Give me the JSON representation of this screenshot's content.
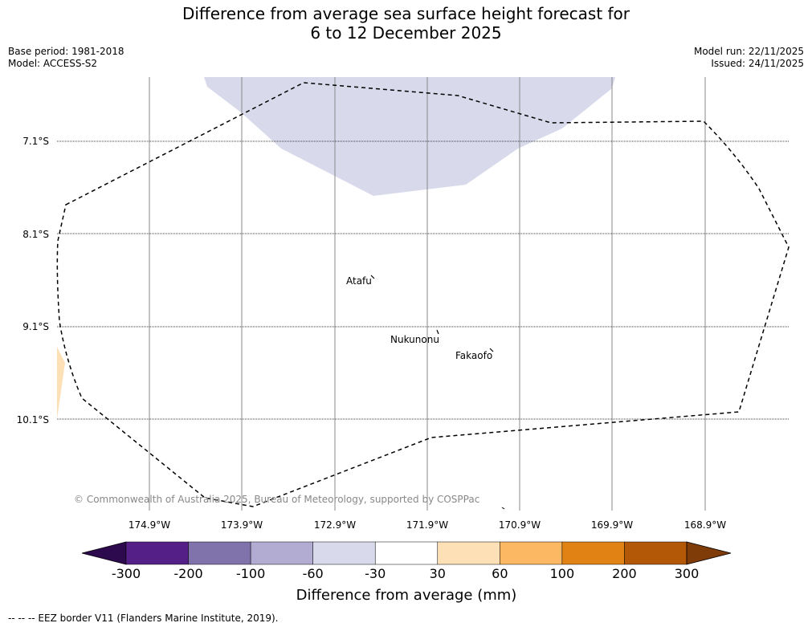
{
  "title": {
    "line1": "Difference from average sea surface height forecast for",
    "line2": "6 to 12 December 2025"
  },
  "meta_left": {
    "base_period": "Base period: 1981-2018",
    "model": "Model: ACCESS-S2"
  },
  "meta_right": {
    "model_run": "Model run: 22/11/2025",
    "issued": "Issued: 24/11/2025"
  },
  "map": {
    "lat_labels": [
      "7.1°S",
      "8.1°S",
      "9.1°S",
      "10.1°S"
    ],
    "lon_labels": [
      "174.9°W",
      "173.9°W",
      "172.9°W",
      "171.9°W",
      "170.9°W",
      "169.9°W",
      "168.9°W"
    ],
    "places": {
      "atafu": "Atafu",
      "nukunonu": "Nukunonu",
      "fakaofo": "Fakaofo"
    },
    "copyright": "© Commonwealth of Australia 2025, Bureau of Meteorology, supported by COSPPac"
  },
  "colorbar": {
    "ticks": [
      "-300",
      "-200",
      "-100",
      "-60",
      "-30",
      "30",
      "60",
      "100",
      "200",
      "300"
    ],
    "colors": [
      "#2d0a4e",
      "#542088",
      "#8073ac",
      "#b2abd2",
      "#d8daeb",
      "#ffffff",
      "#fee0b6",
      "#fdb863",
      "#e08214",
      "#b35806",
      "#7f3b08"
    ],
    "label": "Difference from average (mm)"
  },
  "footnote": "--  --  -- EEZ border V11 (Flanders Marine Institute, 2019)."
}
